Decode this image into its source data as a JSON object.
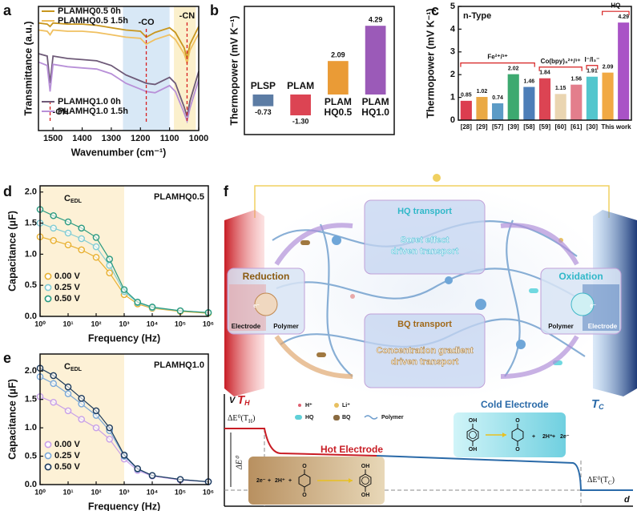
{
  "chart_data": [
    {
      "panel": "a",
      "type": "line",
      "xlabel": "Wavenumber (cm⁻¹)",
      "ylabel": "Transmittance (a.u.)",
      "x": [
        1550,
        1520,
        1510,
        1500,
        1450,
        1400,
        1350,
        1300,
        1250,
        1200,
        1180,
        1150,
        1100,
        1080,
        1050,
        1040,
        1030,
        1000
      ],
      "series": [
        {
          "name": "PLAMHQ0.5 0h",
          "color": "#c8961e",
          "values": [
            8.6,
            8.5,
            8.3,
            8.6,
            8.5,
            8.5,
            8.4,
            8.2,
            8.0,
            7.9,
            7.4,
            7.8,
            8.2,
            7.8,
            6.5,
            5.6,
            6.8,
            8.3
          ]
        },
        {
          "name": "PLAMHQ0.5 1.5h",
          "color": "#f0c060",
          "values": [
            8.0,
            7.9,
            7.6,
            8.0,
            7.9,
            7.9,
            7.8,
            7.6,
            7.4,
            7.3,
            6.8,
            7.2,
            7.6,
            7.2,
            6.0,
            5.2,
            6.3,
            7.7
          ]
        },
        {
          "name": "PLAMHQ1.0 0h",
          "color": "#6e5a78",
          "values": [
            6.0,
            5.8,
            3.5,
            5.8,
            5.6,
            5.5,
            5.4,
            5.0,
            4.2,
            3.7,
            3.5,
            3.4,
            4.0,
            3.5,
            1.5,
            0.7,
            2.0,
            4.5
          ]
        },
        {
          "name": "PLAMHQ1.0 1.5h",
          "color": "#b890d8",
          "values": [
            5.3,
            5.0,
            2.8,
            5.1,
            4.9,
            4.8,
            4.7,
            4.3,
            3.5,
            3.0,
            2.8,
            2.7,
            3.3,
            2.8,
            1.0,
            0.3,
            1.4,
            3.8
          ]
        }
      ],
      "xlim": [
        1550,
        1000
      ],
      "xticks": [
        1500,
        1400,
        1300,
        1200,
        1100,
        1000
      ],
      "ylim": [
        -0.5,
        10
      ],
      "regions": [
        {
          "x": [
            1260,
            1100
          ],
          "color": "#d8e8f6"
        },
        {
          "x": [
            1085,
            1010
          ],
          "color": "#fbf0cc"
        }
      ],
      "annotations": [
        {
          "text": "-OH",
          "x": 1510
        },
        {
          "text": "-CO",
          "x": 1180
        },
        {
          "text": "-CN",
          "x": 1040
        }
      ]
    },
    {
      "panel": "b",
      "type": "bar",
      "ylabel": "Thermopower (mV K⁻¹)",
      "categories": [
        [
          "PLSP"
        ],
        [
          "PLAM"
        ],
        [
          "PLAM",
          "HQ0.5"
        ],
        [
          "PLAM",
          "HQ1.0"
        ]
      ],
      "values": [
        -0.73,
        -1.3,
        2.09,
        4.29
      ],
      "value_labels": [
        "-0.73",
        "-1.30",
        "2.09",
        "4.29"
      ],
      "colors": [
        "#4a6e9a",
        "#d83040",
        "#e89020",
        "#9048b0"
      ],
      "ylim": [
        -2.5,
        5.5
      ]
    },
    {
      "panel": "c",
      "type": "bar",
      "ylabel": "Thermopower (mV K⁻¹)",
      "annotation": "n-Type",
      "categories": [
        "[28]",
        "[29]",
        "[57]",
        "[39]",
        "[58]",
        "[59]",
        "[60]",
        "[61]",
        "[30]",
        "This",
        "work"
      ],
      "values": [
        0.85,
        1.02,
        0.74,
        2.02,
        1.46,
        1.84,
        1.15,
        1.56,
        1.91,
        2.09,
        4.29
      ],
      "colors": [
        "#d8283c",
        "#e8a030",
        "#4a90c0",
        "#28a060",
        "#3a70b0",
        "#d83040",
        "#e8d0a8",
        "#e07080",
        "#40c0c8",
        "#f0a030",
        "#a040c0"
      ],
      "groups": [
        "Fe²⁺/³⁺",
        "Co(bpy)₃²⁺/³⁺",
        "I⁻/I₃⁻",
        "HQ"
      ],
      "ylim": [
        0,
        5
      ],
      "yticks": [
        0,
        1,
        2,
        3,
        4,
        5
      ]
    },
    {
      "panel": "d",
      "type": "line",
      "marker": "o",
      "xlog": true,
      "legend": "lower left",
      "label": "PLAMHQ0.5",
      "annotation": [
        "C",
        "EDL"
      ],
      "xlabel": "Frequency (Hz)",
      "ylabel": "Capacitance (μF)",
      "x": [
        1,
        3,
        10,
        30,
        100,
        300,
        1000,
        3000,
        10000,
        100000,
        1000000
      ],
      "series": [
        {
          "name": "0.00 V",
          "color": "#e8b030",
          "values": [
            1.28,
            1.22,
            1.15,
            1.07,
            0.95,
            0.7,
            0.35,
            0.2,
            0.13,
            0.08,
            0.05
          ]
        },
        {
          "name": "0.25 V",
          "color": "#80ccd4",
          "values": [
            1.5,
            1.42,
            1.34,
            1.25,
            1.12,
            0.82,
            0.4,
            0.22,
            0.14,
            0.09,
            0.06
          ]
        },
        {
          "name": "0.50 V",
          "color": "#2a9a80",
          "values": [
            1.72,
            1.62,
            1.52,
            1.42,
            1.27,
            0.92,
            0.43,
            0.23,
            0.15,
            0.09,
            0.06
          ]
        }
      ],
      "xlim": [
        1,
        1000000
      ],
      "xticks": [
        {
          "value": 1,
          "label": "10⁰"
        },
        {
          "value": 10,
          "label": "10¹"
        },
        {
          "value": 100,
          "label": "10²"
        },
        {
          "value": 1000,
          "label": "10³"
        },
        {
          "value": 10000,
          "label": "10⁴"
        },
        {
          "value": 100000,
          "label": "10⁵"
        },
        {
          "value": 1000000,
          "label": "10⁶"
        }
      ],
      "ylim": [
        0,
        2.1
      ],
      "yticks": [
        {
          "value": 0,
          "label": "0.0"
        },
        0.5,
        {
          "value": 1,
          "label": "1.0"
        },
        1.5,
        {
          "value": 2,
          "label": "2.0"
        }
      ],
      "regions": [
        {
          "x": [
            1,
            1000
          ],
          "color": "#fdf1d6"
        }
      ]
    },
    {
      "panel": "e",
      "type": "line",
      "marker": "o",
      "xlog": true,
      "legend": "lower left",
      "label": "PLAMHQ1.0",
      "annotation": [
        "C",
        "EDL"
      ],
      "xlabel": "Frequency (Hz)",
      "ylabel": "Capacitance (μF)",
      "x": [
        1,
        3,
        10,
        30,
        100,
        300,
        1000,
        3000,
        10000,
        100000,
        1000000
      ],
      "series": [
        {
          "name": "0.00 V",
          "color": "#c8a0e8",
          "values": [
            1.55,
            1.45,
            1.3,
            1.15,
            1.0,
            0.8,
            0.45,
            0.25,
            0.15,
            0.08,
            0.05
          ]
        },
        {
          "name": "0.25 V",
          "color": "#7aa8d8",
          "values": [
            1.9,
            1.78,
            1.6,
            1.42,
            1.22,
            0.95,
            0.5,
            0.27,
            0.16,
            0.09,
            0.05
          ]
        },
        {
          "name": "0.50 V",
          "color": "#1c3a5c",
          "values": [
            2.05,
            1.92,
            1.72,
            1.52,
            1.3,
            1.0,
            0.52,
            0.28,
            0.16,
            0.09,
            0.05
          ]
        }
      ],
      "xlim": [
        1,
        1000000
      ],
      "xticks": [
        {
          "value": 1,
          "label": "10⁰"
        },
        {
          "value": 10,
          "label": "10¹"
        },
        {
          "value": 100,
          "label": "10²"
        },
        {
          "value": 1000,
          "label": "10³"
        },
        {
          "value": 10000,
          "label": "10⁴"
        },
        {
          "value": 100000,
          "label": "10⁵"
        },
        {
          "value": 1000000,
          "label": "10⁶"
        }
      ],
      "ylim": [
        0,
        2.3
      ],
      "yticks": [
        {
          "value": 0,
          "label": "0.0"
        },
        0.5,
        {
          "value": 1,
          "label": "1.0"
        },
        1.5,
        {
          "value": 2,
          "label": "2.0"
        }
      ],
      "regions": [
        {
          "x": [
            1,
            1000
          ],
          "color": "#fdf1d6"
        }
      ]
    }
  ],
  "diagram": {
    "panel": "f",
    "hq_transport": {
      "title": "HQ transport",
      "text": [
        "Soret effect",
        "driven transport"
      ]
    },
    "bq_transport": {
      "title": "BQ transport",
      "text": [
        "Concentration gradient",
        "driven transport"
      ]
    },
    "reduction": {
      "title": "Reduction",
      "left": "Electrode",
      "right": "Polymer",
      "carrier": "e⁻"
    },
    "oxidation": {
      "title": "Oxidation",
      "left": "Polymer",
      "right": "Electrode",
      "carrier": "e⁻"
    },
    "legend": [
      "H⁺",
      "Li⁺",
      "HQ",
      "BQ",
      "Polymer"
    ],
    "energy": {
      "yaxis": "V",
      "xaxis": "d",
      "hot_temp": [
        "T",
        "H"
      ],
      "cold_temp": [
        "T",
        "C"
      ],
      "hot_potential": [
        "ΔE⁰(T",
        "H",
        ")"
      ],
      "cold_potential": [
        "ΔE⁰(T",
        "C",
        ")"
      ],
      "delta": "ΔE⁰",
      "hot_electrode": "Hot Electrode",
      "cold_electrode": "Cold Electrode"
    },
    "cold_reaction": {
      "reactant": [
        "OH",
        "OH"
      ],
      "product": [
        "O",
        "O"
      ],
      "terms": [
        "+",
        "2H⁺",
        "+",
        "2e⁻"
      ]
    },
    "hot_reaction": {
      "terms": [
        "2e⁻",
        "+",
        "2H⁺",
        "+"
      ],
      "reactant": [
        "O",
        "O"
      ],
      "product": [
        "OH",
        "OH"
      ]
    }
  }
}
